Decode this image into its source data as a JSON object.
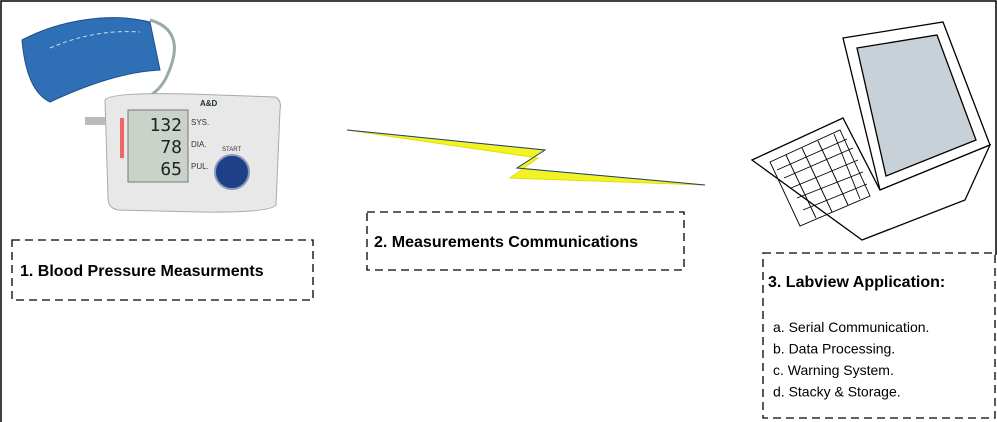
{
  "nodes": [
    {
      "label": "1. Blood Pressure Measurments"
    },
    {
      "label": "2. Measurements Communications"
    },
    {
      "label": "3. Labview Application:",
      "items": [
        "a. Serial Communication.",
        "b. Data Processing.",
        "c. Warning System.",
        "d. Stacky & Storage."
      ]
    }
  ],
  "monitor": {
    "brand": "A&D",
    "readings": [
      {
        "label": "SYS.",
        "value": 132
      },
      {
        "label": "DIA.",
        "value": 78
      },
      {
        "label": "PUL.",
        "value": 65
      }
    ],
    "button": "START"
  }
}
